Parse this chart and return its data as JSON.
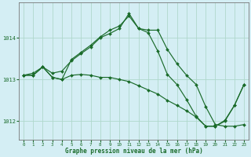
{
  "title": "Graphe pression niveau de la mer (hPa)",
  "bg_color": "#d4eef4",
  "grid_color": "#b0d8cc",
  "line_color": "#1a6b2a",
  "xlim": [
    -0.5,
    23.5
  ],
  "ylim": [
    1011.55,
    1014.85
  ],
  "yticks": [
    1012,
    1013,
    1014
  ],
  "xticks": [
    0,
    1,
    2,
    3,
    4,
    5,
    6,
    7,
    8,
    9,
    10,
    11,
    12,
    13,
    14,
    15,
    16,
    17,
    18,
    19,
    20,
    21,
    22,
    23
  ],
  "series1": {
    "x": [
      0,
      1,
      2,
      3,
      4,
      5,
      6,
      7,
      8,
      9,
      10,
      11,
      12,
      13,
      14,
      15,
      16,
      17,
      18,
      19,
      20,
      21,
      22,
      23
    ],
    "y": [
      1013.1,
      1013.15,
      1013.3,
      1013.15,
      1013.2,
      1013.45,
      1013.62,
      1013.78,
      1014.0,
      1014.1,
      1014.22,
      1014.58,
      1014.22,
      1014.18,
      1014.18,
      1013.72,
      1013.38,
      1013.1,
      1012.88,
      1012.35,
      1011.92,
      1011.88,
      1011.88,
      1011.92
    ]
  },
  "series2": {
    "x": [
      0,
      1,
      2,
      3,
      4,
      5,
      6,
      7,
      8,
      9,
      10,
      11,
      12,
      13,
      14,
      15,
      16,
      17,
      18,
      19,
      20,
      21,
      22,
      23
    ],
    "y": [
      1013.1,
      1013.1,
      1013.3,
      1013.05,
      1013.0,
      1013.1,
      1013.12,
      1013.1,
      1013.05,
      1013.05,
      1013.0,
      1012.95,
      1012.85,
      1012.75,
      1012.65,
      1012.5,
      1012.38,
      1012.25,
      1012.1,
      1011.88,
      1011.88,
      1012.0,
      1012.38,
      1012.88
    ]
  },
  "series3": {
    "x": [
      0,
      1,
      2,
      3,
      4,
      5,
      6,
      7,
      8,
      9,
      10,
      11,
      12,
      13,
      14,
      15,
      16,
      17,
      18,
      19,
      20,
      21,
      22,
      23
    ],
    "y": [
      1013.1,
      1013.1,
      1013.3,
      1013.05,
      1013.0,
      1013.48,
      1013.65,
      1013.82,
      1014.02,
      1014.18,
      1014.28,
      1014.52,
      1014.22,
      1014.12,
      1013.68,
      1013.12,
      1012.88,
      1012.52,
      1012.12,
      1011.88,
      1011.88,
      1012.02,
      1012.38,
      1012.88
    ]
  }
}
